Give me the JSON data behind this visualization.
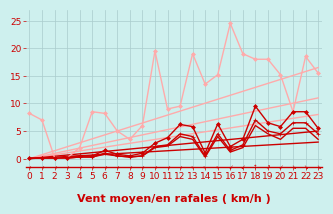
{
  "bg_color": "#cef0ee",
  "grid_color": "#aacccc",
  "xlabel": "Vent moyen/en rafales ( km/h )",
  "xlabel_color": "#cc0000",
  "xlabel_fontsize": 8,
  "tick_color": "#cc0000",
  "tick_fontsize": 6.5,
  "yticks": [
    0,
    5,
    10,
    15,
    20,
    25
  ],
  "xticks": [
    0,
    1,
    2,
    3,
    4,
    5,
    6,
    7,
    8,
    9,
    10,
    11,
    12,
    13,
    14,
    15,
    16,
    17,
    18,
    19,
    20,
    21,
    22,
    23
  ],
  "xlim": [
    -0.3,
    23.3
  ],
  "ylim": [
    -1.5,
    27
  ],
  "straight_lines": [
    {
      "x": [
        0,
        23
      ],
      "y": [
        0.0,
        16.5
      ],
      "color": "#ffaaaa",
      "lw": 1.0,
      "zorder": 2
    },
    {
      "x": [
        0,
        23
      ],
      "y": [
        0.0,
        11.0
      ],
      "color": "#ffaaaa",
      "lw": 1.0,
      "zorder": 2
    },
    {
      "x": [
        0,
        23
      ],
      "y": [
        0.0,
        8.0
      ],
      "color": "#ffaaaa",
      "lw": 1.0,
      "zorder": 2
    },
    {
      "x": [
        0,
        23
      ],
      "y": [
        0.0,
        5.0
      ],
      "color": "#cc0000",
      "lw": 1.0,
      "zorder": 2
    },
    {
      "x": [
        0,
        23
      ],
      "y": [
        0.0,
        3.0
      ],
      "color": "#cc0000",
      "lw": 1.0,
      "zorder": 2
    }
  ],
  "jagged_lines": [
    {
      "x": [
        0,
        1,
        2,
        3,
        4,
        5,
        6,
        7,
        8,
        9,
        10,
        11,
        12,
        13,
        14,
        15,
        16,
        17,
        18,
        19,
        20,
        21,
        22,
        23
      ],
      "y": [
        8.2,
        7.0,
        0.2,
        0.1,
        2.0,
        8.5,
        8.2,
        5.0,
        3.5,
        6.0,
        19.5,
        9.0,
        9.5,
        19.0,
        13.5,
        15.2,
        24.5,
        19.0,
        18.0,
        18.0,
        15.2,
        8.5,
        18.5,
        15.5
      ],
      "color": "#ffaaaa",
      "lw": 1.0,
      "marker": "D",
      "markersize": 2.0,
      "zorder": 5
    },
    {
      "x": [
        0,
        1,
        2,
        3,
        4,
        5,
        6,
        7,
        8,
        9,
        10,
        11,
        12,
        13,
        14,
        15,
        16,
        17,
        18,
        19,
        20,
        21,
        22,
        23
      ],
      "y": [
        0.1,
        0.1,
        0.1,
        0.2,
        0.5,
        0.5,
        1.5,
        0.8,
        0.5,
        1.0,
        2.8,
        3.8,
        6.2,
        5.8,
        1.0,
        6.3,
        2.2,
        3.5,
        9.5,
        6.5,
        5.8,
        8.5,
        8.5,
        5.5
      ],
      "color": "#cc0000",
      "lw": 1.0,
      "marker": "D",
      "markersize": 2.0,
      "zorder": 5
    },
    {
      "x": [
        0,
        1,
        2,
        3,
        4,
        5,
        6,
        7,
        8,
        9,
        10,
        11,
        12,
        13,
        14,
        15,
        16,
        17,
        18,
        19,
        20,
        21,
        22,
        23
      ],
      "y": [
        0.1,
        0.1,
        0.1,
        0.1,
        0.3,
        0.3,
        1.0,
        0.5,
        0.3,
        0.5,
        2.2,
        2.5,
        4.5,
        4.0,
        0.5,
        4.5,
        1.5,
        2.5,
        7.0,
        5.0,
        4.5,
        6.5,
        6.5,
        4.5
      ],
      "color": "#cc0000",
      "lw": 1.0,
      "marker": "+",
      "markersize": 3.0,
      "zorder": 5
    },
    {
      "x": [
        3,
        4,
        5,
        6,
        7,
        8,
        9,
        10,
        11,
        12,
        13,
        14,
        15,
        16,
        17,
        18,
        19,
        20,
        21,
        22,
        23
      ],
      "y": [
        0.1,
        0.3,
        0.3,
        0.8,
        0.5,
        0.3,
        0.5,
        2.0,
        2.3,
        4.0,
        3.5,
        0.3,
        4.0,
        1.2,
        2.0,
        6.0,
        4.5,
        3.5,
        5.5,
        5.5,
        3.5
      ],
      "color": "#cc0000",
      "lw": 1.0,
      "marker": null,
      "zorder": 4
    }
  ],
  "arrow_chars": [
    "→",
    "→",
    "→",
    "→",
    "→",
    "→",
    "→",
    "→",
    "→",
    "→",
    "→",
    "→",
    "→",
    "←",
    "←",
    "←",
    "↙",
    "↙",
    "↑",
    "↗",
    "↙",
    "↘",
    "↘",
    "↘"
  ]
}
